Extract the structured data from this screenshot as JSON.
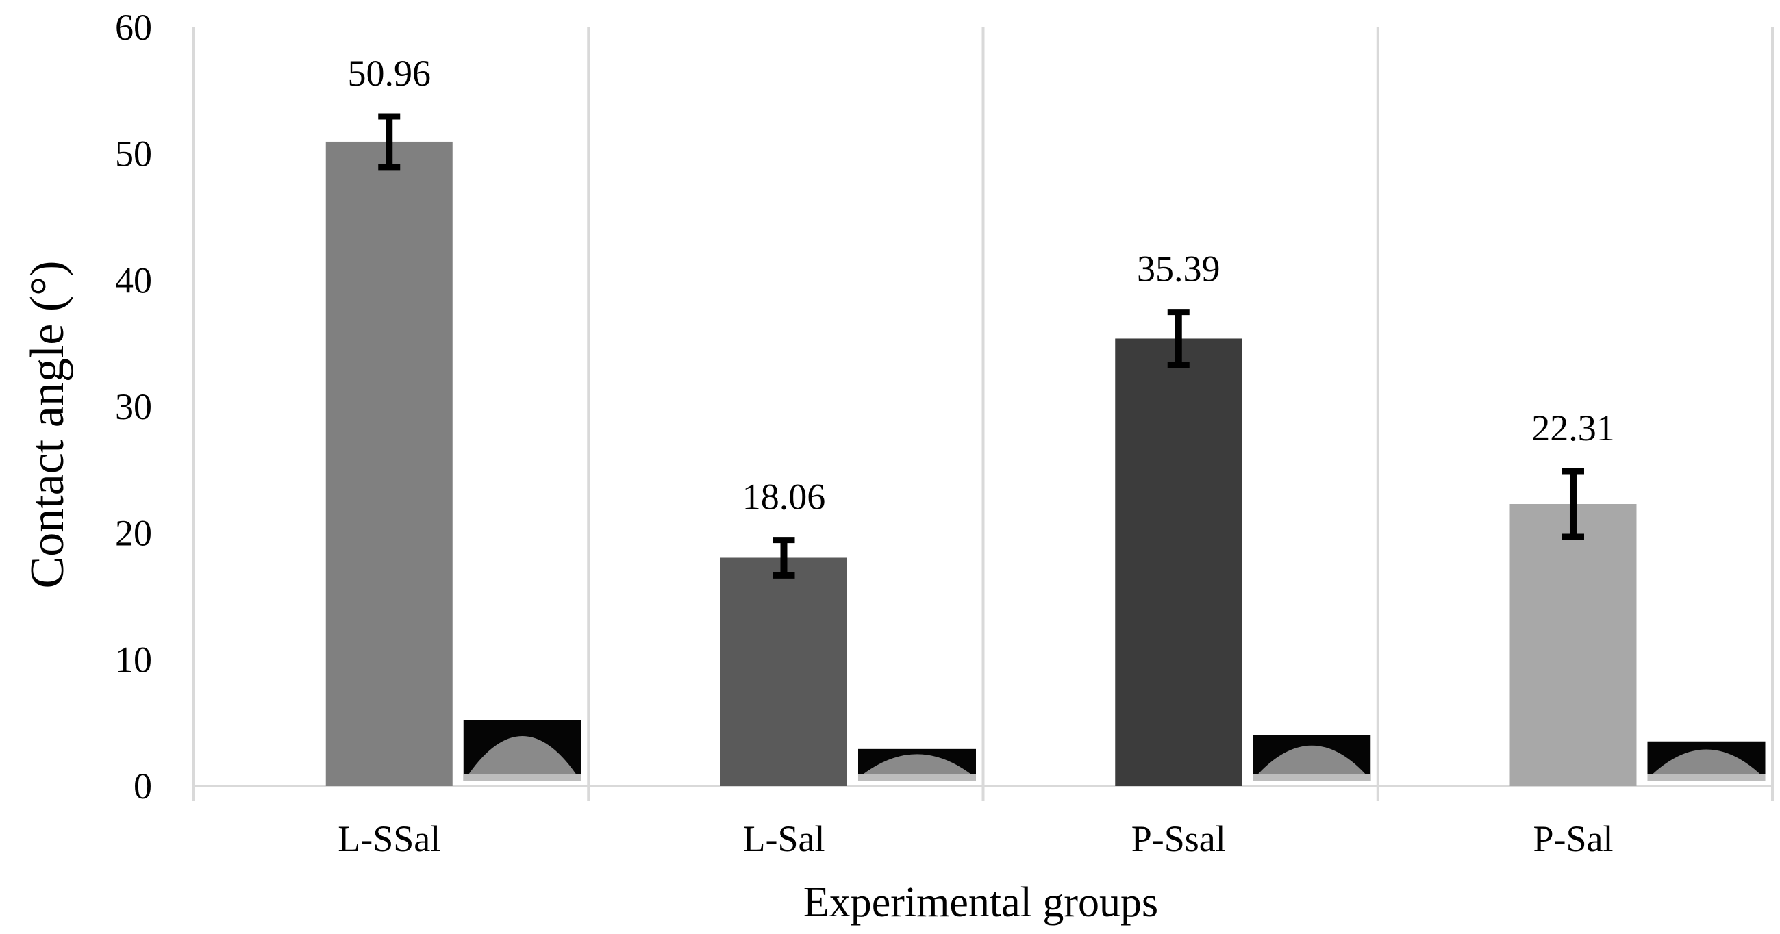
{
  "chart_data": {
    "type": "bar",
    "xlabel": "Experimental groups",
    "ylabel": "Contact angle (°)",
    "ylim": [
      0,
      60
    ],
    "yticks": [
      0,
      10,
      20,
      30,
      40,
      50,
      60
    ],
    "grid": "vertical separators",
    "categories": [
      "L-SSal",
      "L-Sal",
      "P-Ssal",
      "P-Sal"
    ],
    "values": [
      50.96,
      18.06,
      35.39,
      22.31
    ],
    "value_labels": [
      "50.96",
      "18.06",
      "35.39",
      "22.31"
    ],
    "error": [
      2.0,
      1.4,
      2.1,
      2.6
    ],
    "colors": [
      "#808080",
      "#5a5a5a",
      "#3c3c3c",
      "#a8a8a8"
    ],
    "inset_images": [
      "droplet-image",
      "droplet-image",
      "droplet-image",
      "droplet-image"
    ],
    "inset_heights": [
      4.8,
      2.5,
      3.6,
      3.1
    ]
  }
}
